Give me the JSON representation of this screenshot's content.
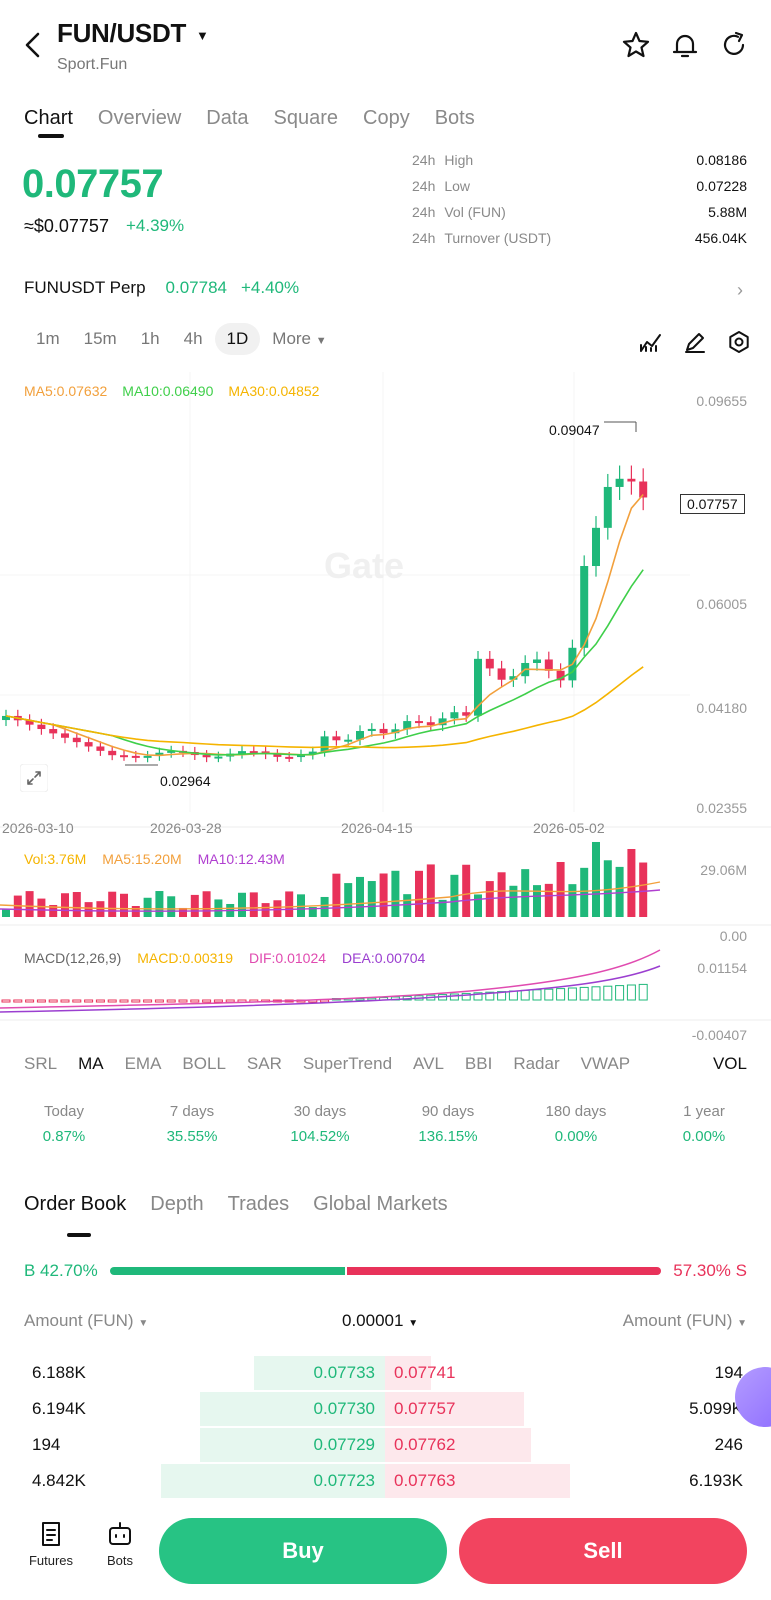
{
  "header": {
    "pair": "FUN/USDT",
    "subtitle": "Sport.Fun",
    "icons": [
      "back-arrow-icon",
      "star-icon",
      "bell-icon",
      "share-icon"
    ]
  },
  "tabs": [
    "Chart",
    "Overview",
    "Data",
    "Square",
    "Copy",
    "Bots"
  ],
  "active_tab": "Chart",
  "price": {
    "last": "0.07757",
    "usd": "≈$0.07757",
    "change": "+4.39%"
  },
  "stats": [
    {
      "period": "24h",
      "label": "High",
      "value": "0.08186"
    },
    {
      "period": "24h",
      "label": "Low",
      "value": "0.07228"
    },
    {
      "period": "24h",
      "label": "Vol (FUN)",
      "value": "5.88M"
    },
    {
      "period": "24h",
      "label": "Turnover (USDT)",
      "value": "456.04K"
    }
  ],
  "perp": {
    "name": "FUNUSDT Perp",
    "price": "0.07784",
    "change": "+4.40%"
  },
  "intervals": [
    "1m",
    "15m",
    "1h",
    "4h",
    "1D",
    "More"
  ],
  "active_interval": "1D",
  "chart_toolbar_icons": [
    "indicator-icon",
    "draw-icon",
    "settings-icon"
  ],
  "ma_legend": {
    "ma5": "MA5:0.07632",
    "ma10": "MA10:0.06490",
    "ma30": "MA30:0.04852"
  },
  "price_axis": [
    "0.09655",
    "0.06005",
    "0.04180",
    "0.02355"
  ],
  "price_tag": "0.07757",
  "high_annotation": "0.09047",
  "low_annotation": "0.02964",
  "watermark": "Gate",
  "dates": [
    "2026-03-10",
    "2026-03-28",
    "2026-04-15",
    "2026-05-02"
  ],
  "vol_legend": {
    "vol": "Vol:3.76M",
    "ma5": "MA5:15.20M",
    "ma10": "MA10:12.43M"
  },
  "vol_axis": [
    "29.06M",
    "0.00"
  ],
  "macd_legend": {
    "name": "MACD(12,26,9)",
    "macd": "MACD:0.00319",
    "dif": "DIF:0.01024",
    "dea": "DEA:0.00704"
  },
  "macd_axis": [
    "0.01154",
    "-0.00407"
  ],
  "indicators": [
    "SRL",
    "MA",
    "EMA",
    "BOLL",
    "SAR",
    "SuperTrend",
    "AVL",
    "BBI",
    "Radar",
    "VWAP"
  ],
  "active_indicator": "MA",
  "vol_toggle": "VOL",
  "performance": [
    {
      "label": "Today",
      "value": "0.87%"
    },
    {
      "label": "7 days",
      "value": "35.55%"
    },
    {
      "label": "30 days",
      "value": "104.52%"
    },
    {
      "label": "90 days",
      "value": "136.15%"
    },
    {
      "label": "180 days",
      "value": "0.00%"
    },
    {
      "label": "1 year",
      "value": "0.00%"
    }
  ],
  "orderbook": {
    "tabs": [
      "Order Book",
      "Depth",
      "Trades",
      "Global Markets"
    ],
    "active_tab": "Order Book",
    "buy_ratio_label": "B 42.70%",
    "sell_ratio_label": "57.30% S",
    "buy_ratio": 0.427,
    "left_header": "Amount (FUN)",
    "precision": "0.00001",
    "right_header": "Amount (FUN)",
    "rows": [
      {
        "bid_amount": "6.188K",
        "bid": "0.07733",
        "ask": "0.07741",
        "ask_amount": "194",
        "bid_depth": 0.17,
        "ask_depth": 0.06
      },
      {
        "bid_amount": "6.194K",
        "bid": "0.07730",
        "ask": "0.07757",
        "ask_amount": "5.099K",
        "bid_depth": 0.24,
        "ask_depth": 0.18
      },
      {
        "bid_amount": "194",
        "bid": "0.07729",
        "ask": "0.07762",
        "ask_amount": "246",
        "bid_depth": 0.24,
        "ask_depth": 0.19
      },
      {
        "bid_amount": "4.842K",
        "bid": "0.07723",
        "ask": "0.07763",
        "ask_amount": "6.193K",
        "bid_depth": 0.29,
        "ask_depth": 0.24
      }
    ]
  },
  "bottom_bar": {
    "futures_label": "Futures",
    "bots_label": "Bots",
    "buy_label": "Buy",
    "sell_label": "Sell"
  },
  "colors": {
    "up": "#1fb87a",
    "down": "#e8325a",
    "ma5": "#f2a03c",
    "ma10": "#3fcf4a",
    "ma30": "#f5b400",
    "dif": "#e04bb0",
    "dea": "#9b3fd0"
  }
}
